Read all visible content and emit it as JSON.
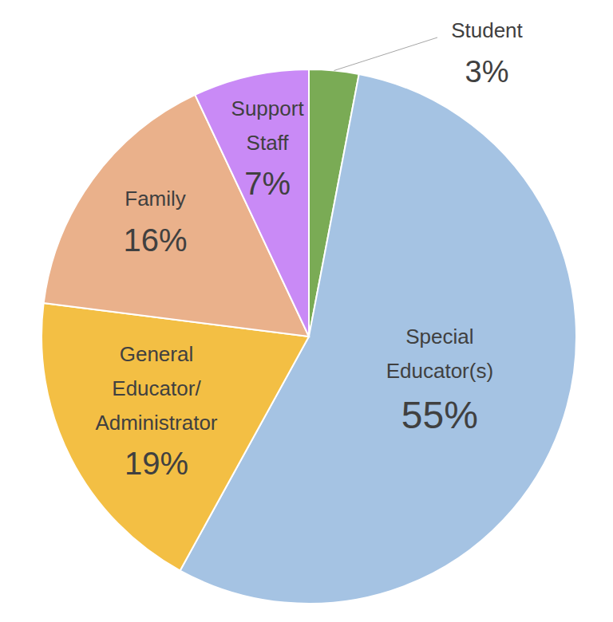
{
  "chart_data": {
    "type": "pie",
    "categories": [
      "Student",
      "Special Educator(s)",
      "General Educator/Administrator",
      "Family",
      "Support Staff"
    ],
    "values": [
      3,
      55,
      19,
      16,
      7
    ],
    "value_labels": [
      "3%",
      "55%",
      "19%",
      "16%",
      "7%"
    ],
    "colors": [
      "#7aab55",
      "#a5c3e3",
      "#f3bf44",
      "#eab18b",
      "#c98af6"
    ],
    "data_labels": true
  }
}
